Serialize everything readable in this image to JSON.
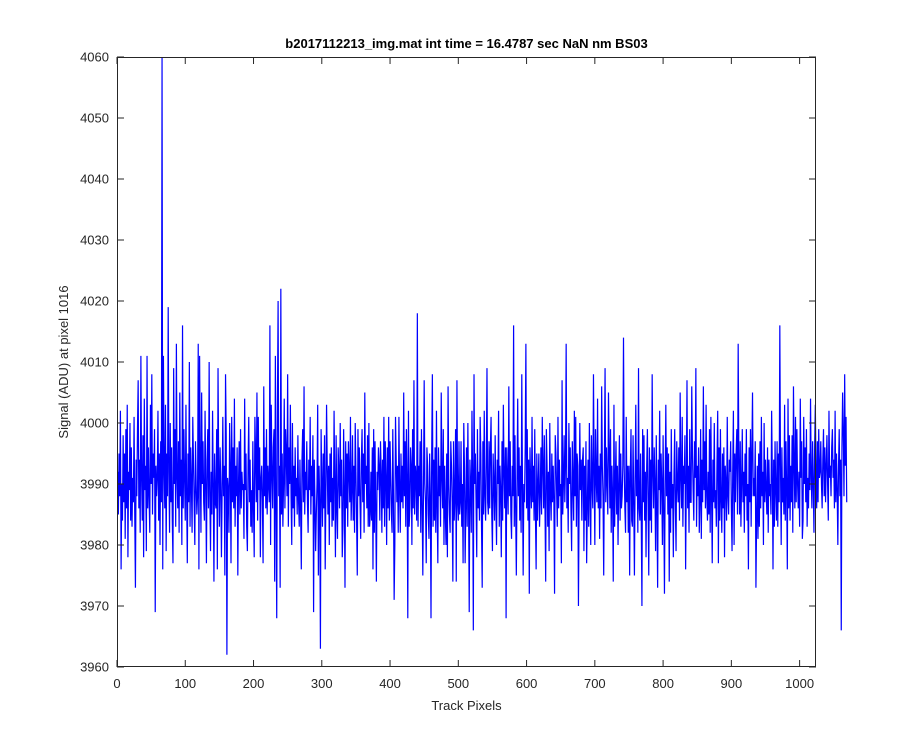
{
  "chart_data": {
    "type": "line",
    "title": "b2017112213_img.mat int time = 16.4787 sec  NaN nm BS03",
    "xlabel": "Track Pixels",
    "ylabel": "Signal (ADU) at pixel 1016",
    "xlim": [
      0,
      1024
    ],
    "ylim": [
      3960,
      4060
    ],
    "xticks": [
      0,
      100,
      200,
      300,
      400,
      500,
      600,
      700,
      800,
      900,
      1000
    ],
    "yticks": [
      3960,
      3970,
      3980,
      3990,
      4000,
      4010,
      4020,
      4030,
      4040,
      4050,
      4060
    ],
    "grid": false,
    "legend": "none",
    "series": [
      {
        "color": "#0000ff",
        "x_start": 1,
        "x_step": 1,
        "count": 1024,
        "values": [
          3992,
          3985,
          3995,
          3988,
          4002,
          3976,
          3990,
          3984,
          3998,
          3987,
          3995,
          3981,
          3999,
          3986,
          4003,
          3978,
          3992,
          3989,
          4000,
          3984,
          3996,
          3983,
          3991,
          3987,
          4001,
          3985,
          3973,
          3994,
          3988,
          3999,
          4007,
          3986,
          3994,
          3982,
          4011,
          3991,
          3984,
          3998,
          3978,
          4004,
          3989,
          3993,
          3979,
          4011,
          3986,
          3996,
          3988,
          3982,
          4003,
          3990,
          4008,
          3985,
          3995,
          3991,
          3999,
          3969,
          3993,
          3988,
          3991,
          4002,
          3984,
          3995,
          3980,
          3997,
          3987,
          4060,
          3976,
          4011,
          3993,
          3986,
          4003,
          3979,
          3995,
          3988,
          4019,
          3992,
          3982,
          4000,
          3987,
          3996,
          3984,
          3977,
          4009,
          3990,
          3999,
          3983,
          4013,
          3991,
          3986,
          3997,
          3982,
          4005,
          3988,
          3994,
          3980,
          4016,
          3986,
          3999,
          3991,
          3984,
          4003,
          3988,
          3977,
          3995,
          3987,
          4010,
          3983,
          3996,
          3990,
          3982,
          4001,
          3994,
          3987,
          3980,
          3997,
          3990,
          3985,
          3988,
          4013,
          3976,
          4011,
          3993,
          3982,
          4005,
          3990,
          3997,
          3987,
          3984,
          4002,
          3990,
          3977,
          3994,
          3999,
          3986,
          4010,
          3988,
          3979,
          3992,
          3985,
          4002,
          3990,
          3974,
          3995,
          3987,
          3986,
          3999,
          3976,
          4009,
          3992,
          3983,
          3996,
          3990,
          3978,
          3989,
          4001,
          3988,
          3993,
          3975,
          4008,
          3998,
          3962,
          3991,
          3989,
          3982,
          4000,
          3993,
          3977,
          4001,
          3987,
          3996,
          3986,
          4004,
          3983,
          3993,
          3988,
          3996,
          3975,
          3990,
          3997,
          3985,
          3999,
          3986,
          3992,
          3989,
          3990,
          3981,
          4004,
          3989,
          3995,
          3983,
          3979,
          3993,
          4001,
          3987,
          3994,
          3983,
          3989,
          3982,
          3997,
          3986,
          3978,
          4001,
          3995,
          3987,
          4005,
          3984,
          4001,
          3989,
          3996,
          3978,
          3991,
          3993,
          3987,
          3977,
          4006,
          3988,
          3996,
          3986,
          3999,
          3985,
          3993,
          3990,
          3987,
          4016,
          3980,
          4003,
          3992,
          3986,
          3996,
          3999,
          3974,
          4011,
          3987,
          3968,
          4003,
          4020,
          3988,
          3993,
          3973,
          4022,
          3985,
          3995,
          3983,
          3990,
          4004,
          3986,
          3999,
          3995,
          3988,
          4008,
          3983,
          3996,
          3990,
          4003,
          3988,
          3980,
          4000,
          3986,
          3993,
          3983,
          3996,
          3988,
          3991,
          3985,
          3998,
          3987,
          3983,
          3994,
          3986,
          3976,
          3994,
          3999,
          3987,
          4006,
          3985,
          3992,
          3989,
          3997,
          3987,
          3982,
          3994,
          3989,
          4001,
          3985,
          3993,
          3988,
          3998,
          3969,
          3994,
          3987,
          3979,
          3985,
          3990,
          4003,
          3975,
          3993,
          3987,
          3963,
          3999,
          3990,
          3983,
          3995,
          3986,
          3998,
          3976,
          3988,
          4003,
          3993,
          3985,
          3993,
          3980,
          3995,
          3987,
          3996,
          3983,
          3991,
          3984,
          4002,
          3990,
          3978,
          3998,
          3986,
          3981,
          3996,
          3992,
          3986,
          4000,
          3988,
          3994,
          3978,
          3983,
          3999,
          3989,
          3973,
          3997,
          3986,
          3995,
          3983,
          3997,
          3992,
          3987,
          4001,
          3984,
          3989,
          3998,
          3984,
          3993,
          3982,
          4000,
          3992,
          3984,
          3975,
          3999,
          3988,
          3996,
          3987,
          3981,
          3994,
          3999,
          3987,
          3995,
          3982,
          4005,
          3990,
          3993,
          3986,
          3998,
          3983,
          4000,
          3983,
          3985,
          3992,
          3984,
          3996,
          3976,
          3999,
          3982,
          3997,
          3986,
          3974,
          3992,
          3989,
          3996,
          3993,
          3984,
          3997,
          3992,
          3982,
          3994,
          3986,
          4001,
          3983,
          3997,
          3991,
          3980,
          3996,
          3986,
          4001,
          3984,
          3997,
          3991,
          3985,
          3982,
          3999,
          3988,
          3971,
          3980,
          4001,
          3994,
          3987,
          3993,
          3982,
          4001,
          3989,
          3982,
          3995,
          3987,
          3993,
          3986,
          4005,
          3988,
          3997,
          3983,
          3999,
          3991,
          3968,
          4002,
          3983,
          3986,
          3996,
          3993,
          3980,
          3999,
          3986,
          4007,
          3985,
          3993,
          3991,
          3984,
          4018,
          3983,
          3993,
          3988,
          3997,
          3982,
          3999,
          3987,
          3975,
          3989,
          4007,
          3990,
          3987,
          3977,
          3996,
          3993,
          3985,
          3981,
          3995,
          3988,
          3968,
          3995,
          4008,
          3983,
          3994,
          3984,
          3996,
          3982,
          4002,
          3986,
          3977,
          3996,
          3988,
          3993,
          3983,
          4005,
          3991,
          3986,
          3999,
          3980,
          3993,
          3985,
          3980,
          3995,
          3978,
          4006,
          3990,
          3985,
          3982,
          3997,
          3993,
          3987,
          3974,
          3997,
          3984,
          3988,
          3999,
          3974,
          4007,
          3987,
          3984,
          3997,
          3985,
          3987,
          3997,
          3983,
          3990,
          3977,
          4000,
          3993,
          3977,
          3986,
          3996,
          3983,
          4000,
          3987,
          3969,
          3994,
          3990,
          3982,
          4002,
          3991,
          3966,
          4008,
          3990,
          3995,
          3987,
          3978,
          3999,
          3986,
          3992,
          3984,
          4001,
          3995,
          3983,
          3973,
          3997,
          3985,
          4002,
          3988,
          3984,
          3993,
          4009,
          3987,
          3985,
          3997,
          3986,
          3996,
          4001,
          3985,
          3979,
          3995,
          3990,
          3984,
          3998,
          3987,
          3980,
          3994,
          3990,
          4002,
          3983,
          3993,
          3989,
          3978,
          3997,
          3984,
          4003,
          3992,
          3986,
          3996,
          3968,
          3996,
          3990,
          3985,
          4006,
          3988,
          3997,
          3985,
          3981,
          3993,
          3988,
          4016,
          3983,
          3998,
          3986,
          3975,
          3990,
          4004,
          3988,
          3996,
          3984,
          3993,
          3982,
          4008,
          3990,
          3975,
          3990,
          3987,
          3996,
          4013,
          3986,
          3999,
          3984,
          3994,
          3972,
          3996,
          3990,
          3986,
          4001,
          3987,
          3993,
          3984,
          3999,
          3985,
          3976,
          3995,
          3984,
          3990,
          3995,
          3983,
          3988,
          3996,
          3985,
          4001,
          3993,
          3986,
          3998,
          3986,
          3974,
          3999,
          3993,
          3983,
          3992,
          3979,
          4000,
          3988,
          3984,
          3995,
          3987,
          3993,
          3987,
          3972,
          3998,
          3995,
          3989,
          3983,
          4001,
          3986,
          3994,
          3988,
          3990,
          3977,
          4007,
          3985,
          3990,
          3998,
          3987,
          3993,
          4013,
          3986,
          3991,
          3982,
          4000,
          3990,
          3996,
          3986,
          3979,
          3997,
          3990,
          3984,
          4002,
          3988,
          4001,
          3983,
          3995,
          3993,
          3970,
          3987,
          4000,
          3989,
          3994,
          3984,
          3994,
          3996,
          3979,
          3993,
          3984,
          3997,
          3977,
          3986,
          3994,
          3983,
          4000,
          3988,
          3980,
          3998,
          3990,
          3986,
          4008,
          3992,
          3980,
          3999,
          3991,
          3987,
          4004,
          3986,
          3993,
          3981,
          3995,
          3986,
          4006,
          3993,
          3988,
          3975,
          3994,
          4009,
          3987,
          3996,
          3990,
          3985,
          4005,
          3996,
          3986,
          3999,
          3982,
          3993,
          3988,
          3974,
          4003,
          3983,
          3990,
          3997,
          3985,
          3993,
          3980,
          3990,
          3998,
          3984,
          3995,
          3986,
          3988,
          3993,
          4014,
          3993,
          3986,
          3982,
          4001,
          3987,
          3993,
          3982,
          3993,
          3975,
          3992,
          3999,
          3984,
          3983,
          3998,
          3987,
          3975,
          3991,
          4003,
          3988,
          3994,
          3982,
          4009,
          3986,
          3984,
          3995,
          3984,
          3970,
          3999,
          3987,
          3998,
          3984,
          3992,
          3978,
          3993,
          3999,
          3987,
          3975,
          3996,
          3984,
          3994,
          3982,
          4008,
          3992,
          3986,
          3996,
          3990,
          3979,
          3998,
          3986,
          3973,
          3994,
          3989,
          4002,
          3985,
          3995,
          3990,
          3980,
          3998,
          3986,
          3972,
          3990,
          4003,
          3988,
          3996,
          3985,
          3995,
          3974,
          3992,
          3982,
          3999,
          3986,
          3990,
          3978,
          3992,
          3999,
          3986,
          3979,
          3997,
          3990,
          3987,
          3996,
          3984,
          4005,
          3991,
          3986,
          4001,
          3983,
          3993,
          3990,
          3998,
          3976,
          3990,
          4007,
          3986,
          3993,
          3982,
          3999,
          3987,
          3987,
          4006,
          3995,
          3989,
          3984,
          3997,
          3991,
          4009,
          3983,
          3993,
          3988,
          3996,
          3982,
          3987,
          3999,
          3981,
          3994,
          3987,
          4006,
          3989,
          3997,
          3986,
          4003,
          3988,
          3984,
          3992,
          3985,
          3999,
          3982,
          4001,
          3988,
          3977,
          3994,
          3987,
          4000,
          3986,
          3989,
          3983,
          3994,
          4002,
          3977,
          3996,
          3984,
          3999,
          3987,
          3982,
          3995,
          3986,
          3996,
          3978,
          3993,
          3990,
          3984,
          4001,
          3988,
          3985,
          3994,
          3992,
          3997,
          3986,
          3979,
          3992,
          4002,
          3980,
          3995,
          3987,
          3995,
          3999,
          3985,
          4013,
          3994,
          3985,
          3997,
          3983,
          3990,
          3999,
          3987,
          3992,
          3982,
          3995,
          3988,
          3999,
          3984,
          3990,
          3976,
          3996,
          3987,
          3999,
          3983,
          3995,
          4005,
          3988,
          3991,
          3988,
          3997,
          3973,
          3984,
          3993,
          3981,
          3995,
          3983,
          3997,
          3986,
          4001,
          3988,
          3992,
          3980,
          4000,
          3987,
          3994,
          3989,
          3985,
          3996,
          3982,
          3994,
          3988,
          3990,
          3985,
          4002,
          3992,
          3976,
          3994,
          3983,
          3997,
          3989,
          3984,
          3997,
          3983,
          3995,
          3987,
          4016,
          3993,
          3980,
          3996,
          3987,
          3991,
          3985,
          4003,
          3984,
          3997,
          3989,
          3976,
          4004,
          3986,
          3998,
          3984,
          3993,
          3987,
          3998,
          3982,
          4006,
          3993,
          3986,
          4001,
          3987,
          3999,
          3990,
          3986,
          3992,
          3983,
          4004,
          3991,
          3997,
          3981,
          3984,
          4001,
          3990,
          3996,
          3987,
          3999,
          3983,
          3991,
          3986,
          3995,
          3989,
          4004,
          3991,
          3986,
          3997,
          3990,
          3982,
          3996,
          4003,
          3992,
          3986,
          3997,
          3987,
          3999,
          3991,
          3992,
          3997,
          3990,
          3986,
          3994,
          3999,
          3988,
          3996,
          3987,
          3993,
          3998,
          3990,
          3984,
          4002,
          3991,
          3993,
          3988,
          3996,
          3999,
          3991,
          3994,
          3986,
          4002,
          3987,
          3995,
          3989,
          3980,
          3993,
          3999,
          3988,
          3994,
          3966,
          3996,
          4005,
          3998,
          3988,
          4008,
          3993,
          4001,
          3987
        ]
      }
    ]
  }
}
